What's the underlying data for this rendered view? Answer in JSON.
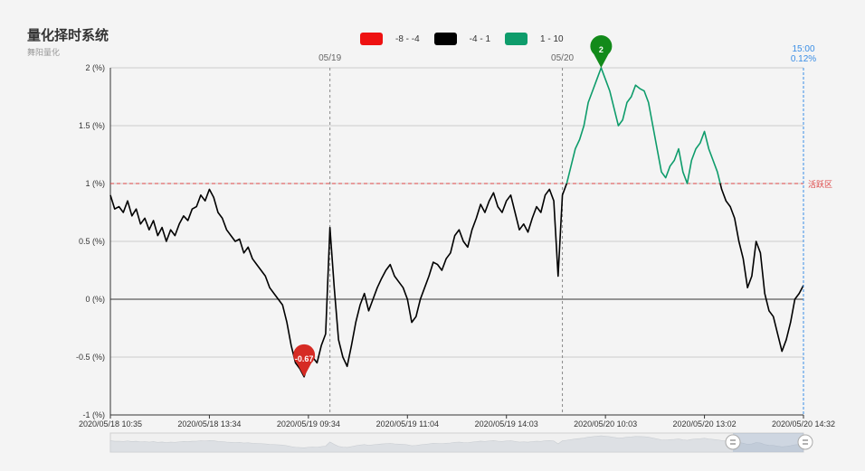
{
  "header": {
    "title": "量化择时系统",
    "subtitle": "舞阳量化"
  },
  "legend": [
    {
      "label": "-8 - -4",
      "color": "#ee1111"
    },
    {
      "label": "-4 - 1",
      "color": "#000000"
    },
    {
      "label": "1 - 10",
      "color": "#0e9c6b"
    }
  ],
  "chart_data": {
    "type": "line",
    "y_unit": "(%)",
    "ylim": [
      -1,
      2
    ],
    "y_ticks": [
      "-1 (%)",
      "-0.5 (%)",
      "0 (%)",
      "0.5 (%)",
      "1 (%)",
      "1.5 (%)",
      "2 (%)"
    ],
    "x_ticks": [
      "2020/05/18 10:35",
      "2020/05/18 13:34",
      "2020/05/19 09:34",
      "2020/05/19 11:04",
      "2020/05/19 14:03",
      "2020/05/20 10:03",
      "2020/05/20 13:02",
      "2020/05/20 14:32"
    ],
    "day_markers": [
      "05/19",
      "05/20"
    ],
    "reference_line": {
      "value": 1.0,
      "label": "活跃区",
      "color": "#dd4444"
    },
    "cursor": {
      "time": "15:00",
      "value": "0.12%"
    },
    "markers": [
      {
        "label": "-0.67",
        "value": -0.67,
        "color": "#d62b24"
      },
      {
        "label": "2",
        "value": 2.0,
        "color": "#128a1a"
      }
    ],
    "series": [
      {
        "thresholds": [
          -4,
          1
        ],
        "colors": [
          "#ee1111",
          "#000000",
          "#0e9c6b"
        ],
        "values": [
          0.9,
          0.78,
          0.8,
          0.75,
          0.85,
          0.72,
          0.78,
          0.65,
          0.7,
          0.6,
          0.68,
          0.55,
          0.62,
          0.5,
          0.6,
          0.55,
          0.65,
          0.72,
          0.68,
          0.78,
          0.8,
          0.9,
          0.85,
          0.95,
          0.88,
          0.75,
          0.7,
          0.6,
          0.55,
          0.5,
          0.52,
          0.4,
          0.45,
          0.35,
          0.3,
          0.25,
          0.2,
          0.1,
          0.05,
          0.0,
          -0.05,
          -0.2,
          -0.4,
          -0.55,
          -0.6,
          -0.67,
          -0.55,
          -0.5,
          -0.55,
          -0.4,
          -0.3,
          0.62,
          0.1,
          -0.35,
          -0.5,
          -0.58,
          -0.4,
          -0.2,
          -0.05,
          0.05,
          -0.1,
          0.0,
          0.1,
          0.18,
          0.25,
          0.3,
          0.2,
          0.15,
          0.1,
          0.0,
          -0.2,
          -0.15,
          0.0,
          0.1,
          0.2,
          0.32,
          0.3,
          0.25,
          0.35,
          0.4,
          0.55,
          0.6,
          0.5,
          0.45,
          0.6,
          0.7,
          0.82,
          0.75,
          0.85,
          0.92,
          0.8,
          0.75,
          0.85,
          0.9,
          0.75,
          0.6,
          0.65,
          0.58,
          0.7,
          0.8,
          0.75,
          0.9,
          0.95,
          0.85,
          0.2,
          0.9,
          1.0,
          1.15,
          1.3,
          1.38,
          1.5,
          1.7,
          1.8,
          1.9,
          2.0,
          1.9,
          1.8,
          1.65,
          1.5,
          1.55,
          1.7,
          1.75,
          1.85,
          1.82,
          1.8,
          1.7,
          1.5,
          1.3,
          1.1,
          1.05,
          1.15,
          1.2,
          1.3,
          1.1,
          1.0,
          1.2,
          1.3,
          1.35,
          1.45,
          1.3,
          1.2,
          1.1,
          0.95,
          0.85,
          0.8,
          0.7,
          0.5,
          0.35,
          0.1,
          0.2,
          0.5,
          0.4,
          0.05,
          -0.1,
          -0.15,
          -0.3,
          -0.45,
          -0.35,
          -0.2,
          0.0,
          0.05,
          0.12
        ]
      }
    ]
  }
}
